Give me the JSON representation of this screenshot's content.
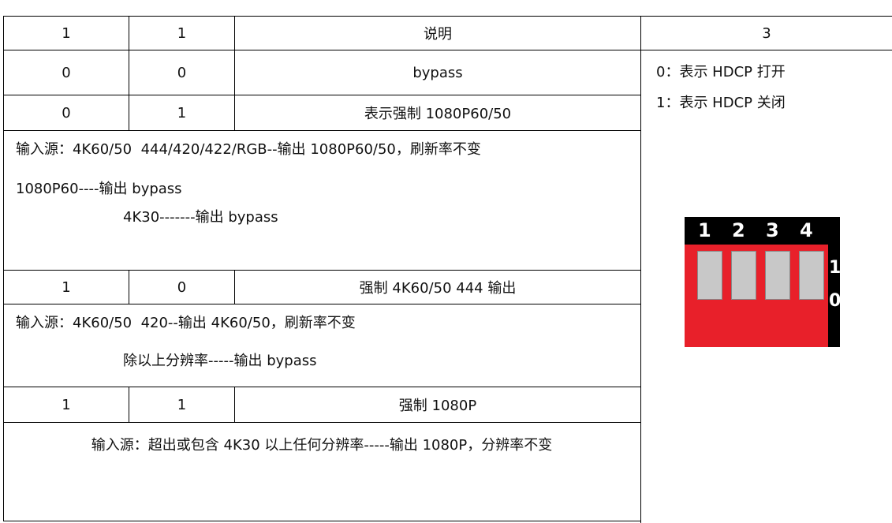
{
  "table": {
    "header": [
      "1",
      "1",
      "说明",
      "3"
    ],
    "sections": [
      {
        "row": [
          "0",
          "0",
          "bypass"
        ]
      },
      {
        "row": [
          "0",
          "1",
          "表示强制 1080P60/50"
        ],
        "notes": [
          "输入源：4K60/50  444/420/422/RGB--输出 1080P60/50，刷新率不变",
          "1080P60----输出 bypass",
          "4K30-------输出 bypass"
        ]
      },
      {
        "row": [
          "1",
          "0",
          "强制 4K60/50 444 输出"
        ],
        "notes": [
          "输入源：4K60/50  420--输出 4K60/50，刷新率不变",
          "除以上分辨率-----输出 bypass"
        ]
      },
      {
        "row": [
          "1",
          "1",
          "强制 1080P"
        ],
        "notes": [
          "输入源：超出或包含 4K30 以上任何分辨率-----输出 1080P，分辨率不变"
        ]
      }
    ]
  },
  "hdcp": [
    "0：表示 HDCP 打开",
    "1：表示 HDCP 关闭"
  ],
  "dip_switch": {
    "numbers": [
      "1",
      "2",
      "3",
      "4"
    ],
    "states": [
      "1",
      "0"
    ]
  }
}
